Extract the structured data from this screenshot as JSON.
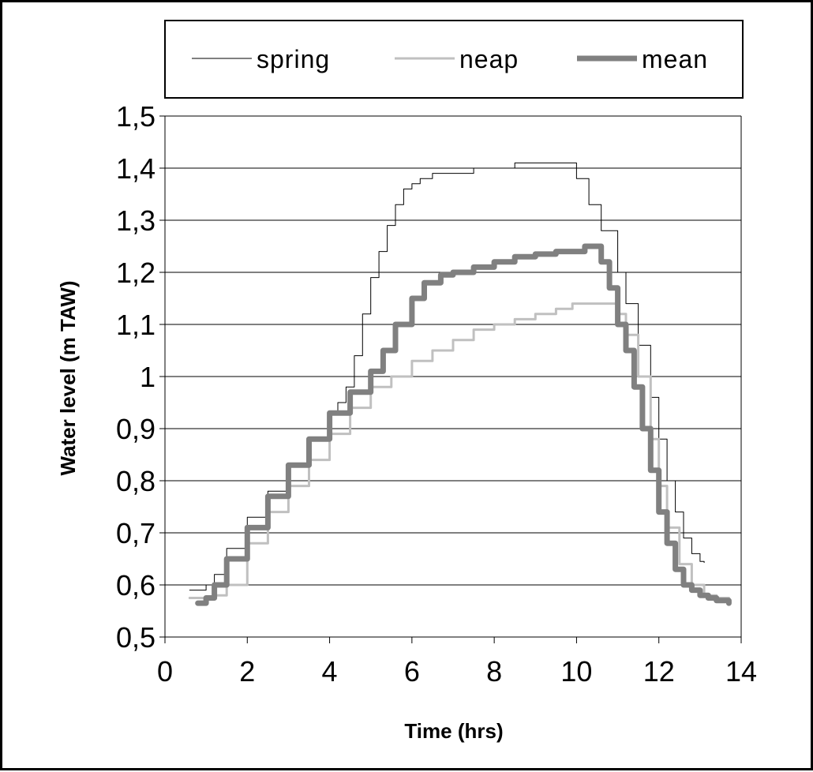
{
  "chart_data": {
    "type": "line",
    "title": "",
    "xlabel": "Time (hrs)",
    "ylabel": "Water level (m TAW)",
    "xlim": [
      0,
      14
    ],
    "ylim": [
      0.5,
      1.5
    ],
    "x_ticks": [
      "0",
      "2",
      "4",
      "6",
      "8",
      "10",
      "12",
      "14"
    ],
    "y_ticks": [
      "0,5",
      "0,6",
      "0,7",
      "0,8",
      "0,9",
      "1",
      "1,1",
      "1,2",
      "1,3",
      "1,4",
      "1,5"
    ],
    "grid": "horizontal",
    "legend_position": "top",
    "series": [
      {
        "name": "spring",
        "color": "#000000",
        "x": [
          0.6,
          0.8,
          1.0,
          1.2,
          1.5,
          2.0,
          2.5,
          3.0,
          3.5,
          4.0,
          4.2,
          4.4,
          4.6,
          4.8,
          5.0,
          5.2,
          5.4,
          5.6,
          5.8,
          6.0,
          6.2,
          6.5,
          7.0,
          7.5,
          8.0,
          8.5,
          9.0,
          9.5,
          9.8,
          10.0,
          10.3,
          10.6,
          11.0,
          11.2,
          11.5,
          11.8,
          12.0,
          12.2,
          12.4,
          12.6,
          12.8,
          13.0,
          13.1
        ],
        "y": [
          0.59,
          0.59,
          0.6,
          0.62,
          0.67,
          0.73,
          0.78,
          0.83,
          0.88,
          0.93,
          0.95,
          0.98,
          1.04,
          1.12,
          1.19,
          1.24,
          1.29,
          1.33,
          1.36,
          1.37,
          1.38,
          1.39,
          1.39,
          1.4,
          1.4,
          1.41,
          1.41,
          1.41,
          1.41,
          1.38,
          1.33,
          1.28,
          1.2,
          1.14,
          1.06,
          0.96,
          0.88,
          0.8,
          0.74,
          0.69,
          0.66,
          0.645,
          0.643
        ]
      },
      {
        "name": "neap",
        "color": "#c0c0c0",
        "x": [
          0.6,
          0.9,
          1.2,
          1.5,
          2.0,
          2.5,
          3.0,
          3.5,
          4.0,
          4.5,
          5.0,
          5.5,
          6.0,
          6.5,
          7.0,
          7.5,
          8.0,
          8.5,
          9.0,
          9.5,
          9.9,
          10.2,
          10.5,
          10.8,
          11.0,
          11.2,
          11.5,
          11.8,
          12.0,
          12.2,
          12.5,
          12.8,
          13.1,
          13.4,
          13.7
        ],
        "y": [
          0.575,
          0.575,
          0.58,
          0.6,
          0.68,
          0.74,
          0.79,
          0.84,
          0.89,
          0.94,
          0.98,
          1.0,
          1.03,
          1.05,
          1.07,
          1.09,
          1.1,
          1.11,
          1.12,
          1.13,
          1.14,
          1.14,
          1.14,
          1.14,
          1.12,
          1.08,
          1.0,
          0.88,
          0.79,
          0.71,
          0.64,
          0.6,
          0.58,
          0.575,
          0.57
        ]
      },
      {
        "name": "mean",
        "color": "#808080",
        "x": [
          0.8,
          1.0,
          1.2,
          1.5,
          2.0,
          2.5,
          3.0,
          3.5,
          4.0,
          4.5,
          5.0,
          5.3,
          5.6,
          6.0,
          6.3,
          6.7,
          7.0,
          7.5,
          8.0,
          8.5,
          9.0,
          9.5,
          10.0,
          10.2,
          10.4,
          10.6,
          10.8,
          11.0,
          11.2,
          11.4,
          11.6,
          11.8,
          12.0,
          12.2,
          12.4,
          12.6,
          12.8,
          13.0,
          13.2,
          13.4,
          13.7
        ],
        "y": [
          0.565,
          0.575,
          0.6,
          0.65,
          0.71,
          0.77,
          0.83,
          0.88,
          0.93,
          0.97,
          1.01,
          1.05,
          1.1,
          1.15,
          1.18,
          1.195,
          1.2,
          1.21,
          1.22,
          1.23,
          1.235,
          1.24,
          1.24,
          1.25,
          1.25,
          1.22,
          1.17,
          1.1,
          1.05,
          0.98,
          0.9,
          0.82,
          0.74,
          0.68,
          0.63,
          0.6,
          0.59,
          0.58,
          0.575,
          0.57,
          0.565
        ]
      }
    ]
  }
}
